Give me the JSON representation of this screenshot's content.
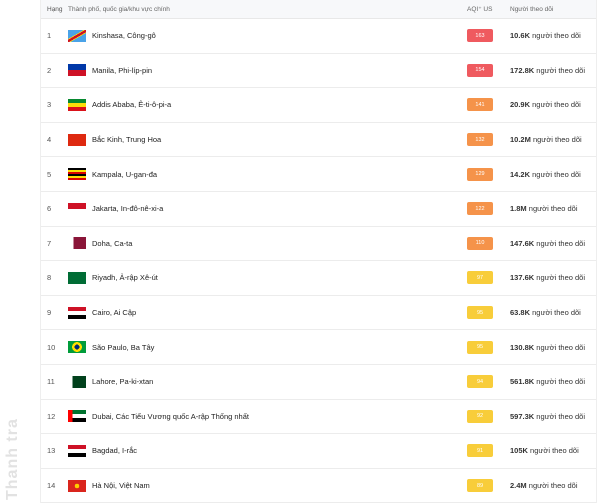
{
  "header": {
    "rank": "Hạng",
    "city": "Thành phố, quốc gia/khu vực chính",
    "aqi": "AQI⁺ US",
    "followers": "Người theo dõi"
  },
  "follower_suffix": "người theo dõi",
  "colors": {
    "unhealthy": "#ef5a5f",
    "sensitive": "#f5934a",
    "moderate": "#f8cd3a"
  },
  "rows": [
    {
      "rank": "1",
      "city": "Kinshasa, Công-gô",
      "flag": "flag-dr-congo",
      "aqi": "163",
      "level": "unhealthy",
      "followers": "10.6K"
    },
    {
      "rank": "2",
      "city": "Manila, Phi-líp-pin",
      "flag": "flag-philippines",
      "aqi": "154",
      "level": "unhealthy",
      "followers": "172.8K"
    },
    {
      "rank": "3",
      "city": "Addis Ababa, Ê-ti-ô-pi-a",
      "flag": "flag-ethiopia",
      "aqi": "141",
      "level": "sensitive",
      "followers": "20.9K"
    },
    {
      "rank": "4",
      "city": "Bắc Kinh, Trung Hoa",
      "flag": "flag-china",
      "aqi": "132",
      "level": "sensitive",
      "followers": "10.2M"
    },
    {
      "rank": "5",
      "city": "Kampala, U-gan-đa",
      "flag": "flag-uganda",
      "aqi": "129",
      "level": "sensitive",
      "followers": "14.2K"
    },
    {
      "rank": "6",
      "city": "Jakarta, In-đô-nê-xi-a",
      "flag": "flag-indonesia",
      "aqi": "122",
      "level": "sensitive",
      "followers": "1.8M"
    },
    {
      "rank": "7",
      "city": "Doha, Ca-ta",
      "flag": "flag-qatar",
      "aqi": "110",
      "level": "sensitive",
      "followers": "147.6K"
    },
    {
      "rank": "8",
      "city": "Riyadh, Ả-rập Xê-út",
      "flag": "flag-saudi-arabia",
      "aqi": "97",
      "level": "moderate",
      "followers": "137.6K"
    },
    {
      "rank": "9",
      "city": "Cairo, Ai Cập",
      "flag": "flag-egypt",
      "aqi": "95",
      "level": "moderate",
      "followers": "63.8K"
    },
    {
      "rank": "10",
      "city": "São Paulo, Ba Tây",
      "flag": "flag-brazil",
      "aqi": "95",
      "level": "moderate",
      "followers": "130.8K"
    },
    {
      "rank": "11",
      "city": "Lahore, Pa-ki-xtan",
      "flag": "flag-pakistan",
      "aqi": "94",
      "level": "moderate",
      "followers": "561.8K"
    },
    {
      "rank": "12",
      "city": "Dubai, Các Tiểu Vương quốc A-rập Thống nhất",
      "flag": "flag-uae",
      "aqi": "92",
      "level": "moderate",
      "followers": "597.3K"
    },
    {
      "rank": "13",
      "city": "Bagdad, I-rắc",
      "flag": "flag-iraq",
      "aqi": "91",
      "level": "moderate",
      "followers": "105K"
    },
    {
      "rank": "14",
      "city": "Hà Nội, Việt Nam",
      "flag": "flag-vietnam",
      "aqi": "89",
      "level": "moderate",
      "followers": "2.4M"
    }
  ],
  "watermark": "Thanh tra"
}
